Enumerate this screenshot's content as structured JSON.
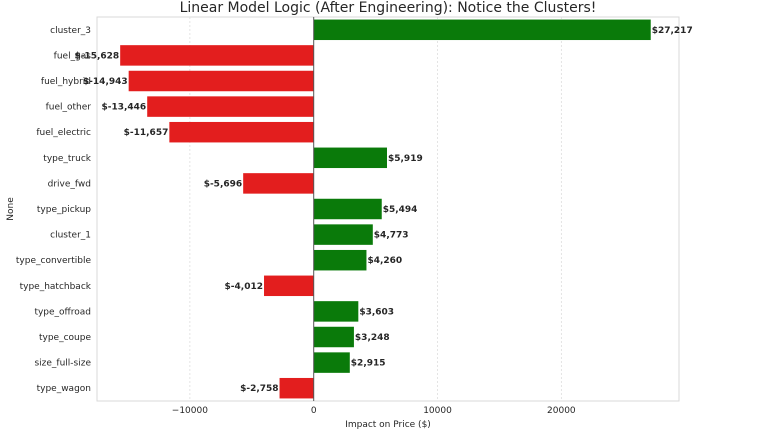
{
  "chart_data": {
    "type": "bar",
    "orientation": "horizontal",
    "title": "Linear Model Logic (After Engineering): Notice the Clusters!",
    "xlabel": "Impact on Price ($)",
    "ylabel": "None",
    "xlim": [
      -17500,
      29500
    ],
    "xticks": [
      -10000,
      0,
      10000,
      20000
    ],
    "xtick_labels": [
      "−10000",
      "0",
      "10000",
      "20000"
    ],
    "grid": true,
    "colors": {
      "positive": "#0a7a0a",
      "negative": "#e31e1e"
    },
    "categories": [
      "cluster_3",
      "fuel_gas",
      "fuel_hybrid",
      "fuel_other",
      "fuel_electric",
      "type_truck",
      "drive_fwd",
      "type_pickup",
      "cluster_1",
      "type_convertible",
      "type_hatchback",
      "type_offroad",
      "type_coupe",
      "size_full-size",
      "type_wagon"
    ],
    "values": [
      27217,
      -15628,
      -14943,
      -13446,
      -11657,
      5919,
      -5696,
      5494,
      4773,
      4260,
      -4012,
      3603,
      3248,
      2915,
      -2758
    ],
    "value_labels": [
      "$27,217",
      "$-15,628",
      "$-14,943",
      "$-13,446",
      "$-11,657",
      "$5,919",
      "$-5,696",
      "$5,494",
      "$4,773",
      "$4,260",
      "$-4,012",
      "$3,603",
      "$3,248",
      "$2,915",
      "$-2,758"
    ]
  }
}
